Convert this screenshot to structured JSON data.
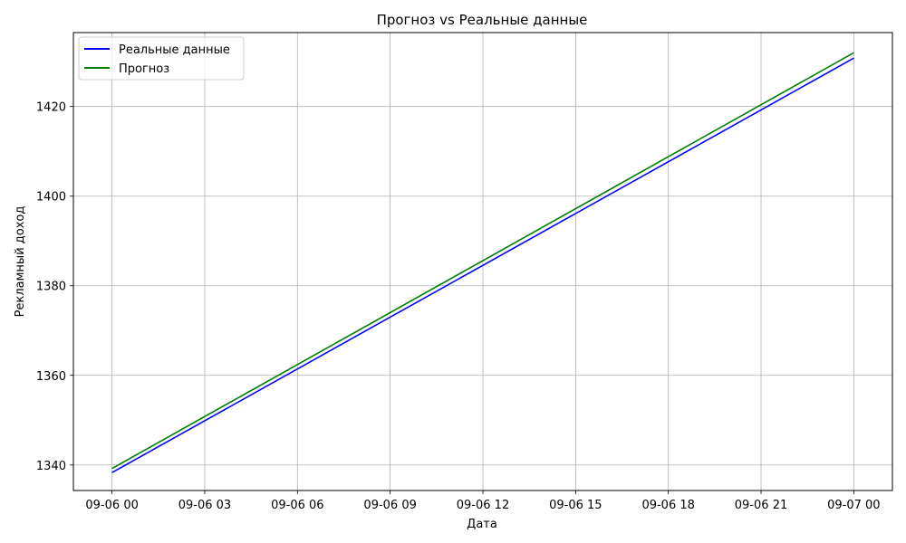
{
  "chart_data": {
    "type": "line",
    "title": "Прогноз vs Реальные данные",
    "xlabel": "Дата",
    "ylabel": "Рекламный доход",
    "x_ticks": [
      "09-06 00",
      "09-06 03",
      "09-06 06",
      "09-06 09",
      "09-06 12",
      "09-06 15",
      "09-06 18",
      "09-06 21",
      "09-07 00"
    ],
    "y_ticks": [
      1340,
      1360,
      1380,
      1400,
      1420
    ],
    "xlim": [
      "2024-09-05 22:45",
      "2024-09-07 01:15"
    ],
    "ylim": [
      1334.3,
      1436.5
    ],
    "grid": true,
    "legend_position": "top-left",
    "series": [
      {
        "name": "Реальные данные",
        "color": "#0000ff",
        "x": [
          "2024-09-06 00:00",
          "2024-09-07 00:00"
        ],
        "y": [
          1338.3,
          1430.8
        ]
      },
      {
        "name": "Прогноз",
        "color": "#008000",
        "x": [
          "2024-09-06 00:00",
          "2024-09-07 00:00"
        ],
        "y": [
          1339.2,
          1432.0
        ]
      }
    ]
  }
}
